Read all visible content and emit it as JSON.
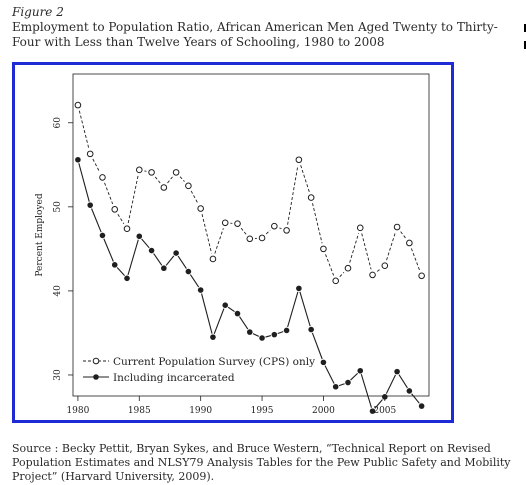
{
  "figure": {
    "label": "Figure 2",
    "title": "Employment to Population Ratio, African American Men Aged Twenty to Thirty-Four with Less than Twelve Years of Schooling, 1980 to 2008"
  },
  "source": {
    "text": "Source : Becky Pettit, Bryan Sykes, and Bruce Western, “Technical Report on Revised Population Estimates and NLSY79 Analysis Tables for the Pew Public Safety and Mobility Project” (Harvard University, 2009)."
  },
  "colors": {
    "frame": "#1d2ad6",
    "ink": "#1f1f1f"
  },
  "chart_data": {
    "type": "line",
    "title": "",
    "xlabel": "",
    "ylabel": "Percent Employed",
    "xlim": [
      1979.6,
      2008.6
    ],
    "ylim": [
      27.5,
      65.8
    ],
    "xticks": [
      1980,
      1985,
      1990,
      1995,
      2000,
      2005
    ],
    "yticks": [
      30,
      40,
      50,
      60
    ],
    "grid": false,
    "legend_position": "bottom-left",
    "x": [
      1980,
      1981,
      1982,
      1983,
      1984,
      1985,
      1986,
      1987,
      1988,
      1989,
      1990,
      1991,
      1992,
      1993,
      1994,
      1995,
      1996,
      1997,
      1998,
      1999,
      2000,
      2001,
      2002,
      2003,
      2004,
      2005,
      2006,
      2007,
      2008
    ],
    "series": [
      {
        "name": "Current Population Survey (CPS) only",
        "marker": "open-circle",
        "line": "dashed",
        "values": [
          62.1,
          56.3,
          53.5,
          49.7,
          47.4,
          54.4,
          54.1,
          52.3,
          54.1,
          52.5,
          49.8,
          43.8,
          48.1,
          48.0,
          46.2,
          46.3,
          47.7,
          47.2,
          55.6,
          51.1,
          45.0,
          41.2,
          42.7,
          47.5,
          41.9,
          43.0,
          47.6,
          45.7,
          41.8
        ]
      },
      {
        "name": "Including incarcerated",
        "marker": "filled-circle",
        "line": "solid",
        "values": [
          55.6,
          50.2,
          46.6,
          43.1,
          41.5,
          46.5,
          44.8,
          42.7,
          44.5,
          42.3,
          40.1,
          34.5,
          38.3,
          37.3,
          35.1,
          34.4,
          34.8,
          35.3,
          40.3,
          35.4,
          31.5,
          28.6,
          29.1,
          30.5,
          25.7,
          27.4,
          30.4,
          28.1,
          26.3
        ]
      }
    ]
  }
}
